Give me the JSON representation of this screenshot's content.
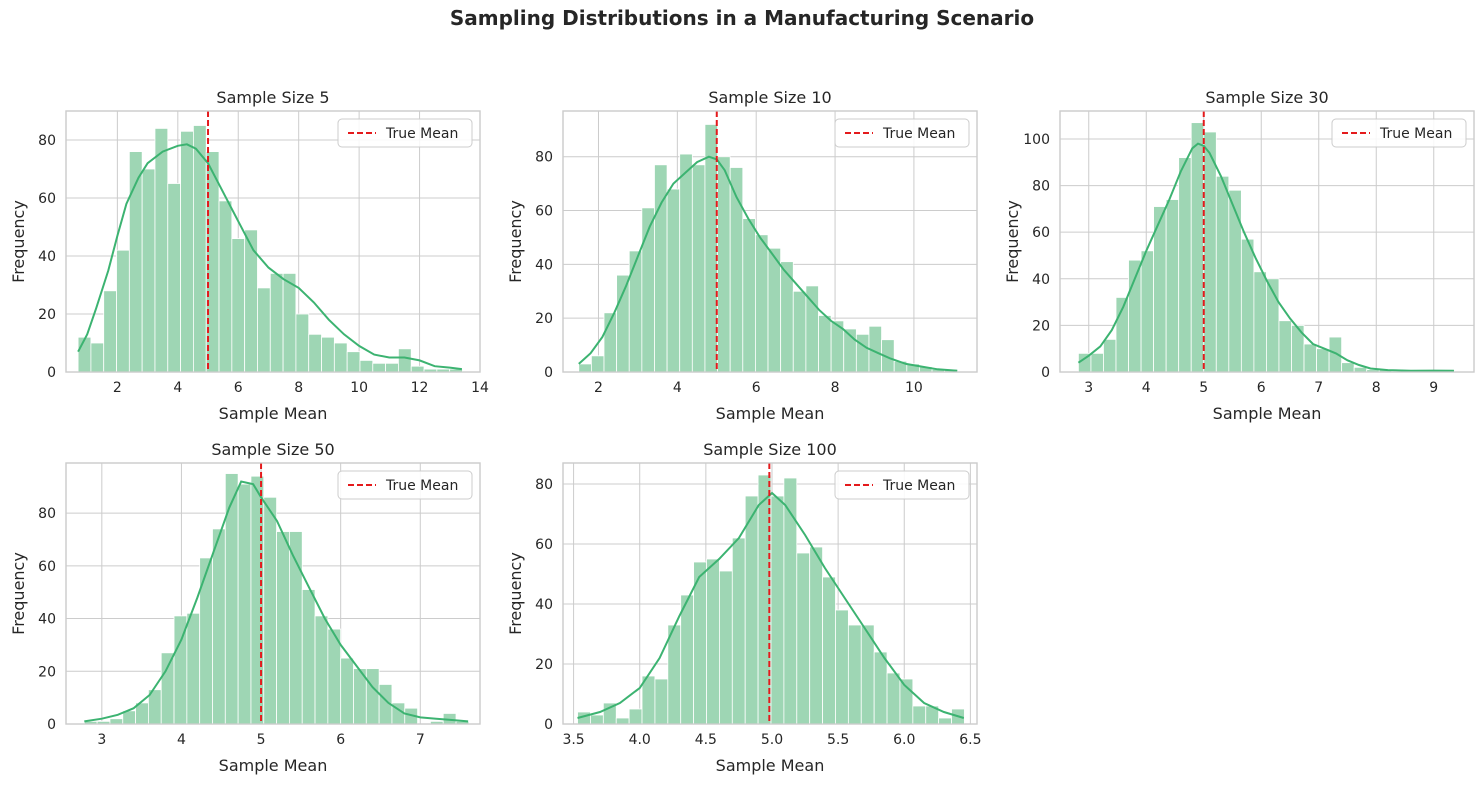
{
  "figure": {
    "title": "Sampling Distributions in a Manufacturing Scenario"
  },
  "colors": {
    "bar": "#9ed6b4",
    "kde": "#3cb371",
    "mean_line": "#e41a1c",
    "grid": "#cccccc"
  },
  "chart_data": [
    {
      "type": "bar",
      "title": "Sample Size 5",
      "xlabel": "Sample Mean",
      "ylabel": "Frequency",
      "xlim": [
        0.3,
        14.0
      ],
      "ylim": [
        0,
        90
      ],
      "xticks": [
        2,
        4,
        6,
        8,
        10,
        12,
        14
      ],
      "yticks": [
        0,
        20,
        40,
        60,
        80
      ],
      "bin_start": 0.7,
      "bin_width": 0.424,
      "values": [
        12,
        10,
        28,
        42,
        76,
        70,
        84,
        65,
        83,
        85,
        76,
        59,
        46,
        49,
        29,
        34,
        34,
        20,
        13,
        12,
        10,
        7,
        4,
        3,
        3,
        8,
        2,
        1,
        1,
        1
      ],
      "kde": [
        [
          0.7,
          7
        ],
        [
          1.0,
          13
        ],
        [
          1.3,
          22
        ],
        [
          1.7,
          35
        ],
        [
          2.0,
          47
        ],
        [
          2.3,
          58
        ],
        [
          2.7,
          67
        ],
        [
          3.0,
          72
        ],
        [
          3.5,
          76
        ],
        [
          4.0,
          78
        ],
        [
          4.3,
          78.5
        ],
        [
          4.6,
          77
        ],
        [
          5.0,
          72
        ],
        [
          5.5,
          62
        ],
        [
          6.0,
          52
        ],
        [
          6.5,
          42
        ],
        [
          7.0,
          36
        ],
        [
          7.5,
          32
        ],
        [
          8.0,
          29
        ],
        [
          8.5,
          24
        ],
        [
          9.0,
          18
        ],
        [
          9.5,
          13
        ],
        [
          10.0,
          9
        ],
        [
          10.5,
          6
        ],
        [
          11.0,
          5
        ],
        [
          11.5,
          5
        ],
        [
          12.0,
          4
        ],
        [
          12.5,
          2
        ],
        [
          13.0,
          1.5
        ],
        [
          13.4,
          1
        ]
      ],
      "true_mean": 5.0,
      "legend": {
        "entries": [
          "True Mean"
        ],
        "placement": "upper-right"
      }
    },
    {
      "type": "bar",
      "title": "Sample Size 10",
      "xlabel": "Sample Mean",
      "ylabel": "Frequency",
      "xlim": [
        1.1,
        11.6
      ],
      "ylim": [
        0,
        97
      ],
      "xticks": [
        2,
        4,
        6,
        8,
        10
      ],
      "yticks": [
        0,
        20,
        40,
        60,
        80
      ],
      "bin_start": 1.5,
      "bin_width": 0.32,
      "values": [
        3,
        6,
        22,
        36,
        45,
        61,
        77,
        68,
        81,
        77,
        92,
        80,
        76,
        57,
        51,
        46,
        41,
        30,
        32,
        21,
        19,
        16,
        14,
        17,
        12,
        4,
        3,
        2,
        1,
        1
      ],
      "kde": [
        [
          1.5,
          3
        ],
        [
          1.8,
          7
        ],
        [
          2.1,
          13
        ],
        [
          2.4,
          22
        ],
        [
          2.7,
          32
        ],
        [
          3.0,
          43
        ],
        [
          3.3,
          54
        ],
        [
          3.6,
          63
        ],
        [
          3.9,
          70
        ],
        [
          4.2,
          74
        ],
        [
          4.5,
          78
        ],
        [
          4.8,
          80
        ],
        [
          5.0,
          79
        ],
        [
          5.2,
          75
        ],
        [
          5.5,
          65
        ],
        [
          5.8,
          57
        ],
        [
          6.1,
          50
        ],
        [
          6.4,
          44
        ],
        [
          6.7,
          38
        ],
        [
          7.0,
          33
        ],
        [
          7.3,
          28
        ],
        [
          7.6,
          23
        ],
        [
          7.9,
          19
        ],
        [
          8.2,
          16
        ],
        [
          8.5,
          12
        ],
        [
          8.8,
          9
        ],
        [
          9.1,
          7
        ],
        [
          9.4,
          5
        ],
        [
          9.8,
          3
        ],
        [
          10.2,
          2
        ],
        [
          10.6,
          1
        ],
        [
          11.1,
          0.5
        ]
      ],
      "true_mean": 5.0,
      "legend": {
        "entries": [
          "True Mean"
        ],
        "placement": "upper-right"
      }
    },
    {
      "type": "bar",
      "title": "Sample Size 30",
      "xlabel": "Sample Mean",
      "ylabel": "Frequency",
      "xlim": [
        2.5,
        9.7
      ],
      "ylim": [
        0,
        112
      ],
      "xticks": [
        3,
        4,
        5,
        6,
        7,
        8,
        9
      ],
      "yticks": [
        0,
        20,
        40,
        60,
        80,
        100
      ],
      "bin_start": 2.82,
      "bin_width": 0.218,
      "values": [
        8,
        8,
        14,
        32,
        48,
        52,
        71,
        74,
        92,
        107,
        103,
        84,
        78,
        57,
        43,
        40,
        22,
        20,
        12,
        10,
        15,
        4,
        2,
        1,
        1,
        0,
        0,
        0,
        0,
        1
      ],
      "kde": [
        [
          2.82,
          4
        ],
        [
          3.0,
          7
        ],
        [
          3.2,
          11
        ],
        [
          3.4,
          18
        ],
        [
          3.6,
          28
        ],
        [
          3.8,
          40
        ],
        [
          4.0,
          52
        ],
        [
          4.2,
          63
        ],
        [
          4.4,
          74
        ],
        [
          4.6,
          86
        ],
        [
          4.8,
          96
        ],
        [
          4.9,
          98
        ],
        [
          5.0,
          97
        ],
        [
          5.1,
          94
        ],
        [
          5.3,
          84
        ],
        [
          5.5,
          72
        ],
        [
          5.7,
          60
        ],
        [
          5.9,
          49
        ],
        [
          6.1,
          39
        ],
        [
          6.3,
          30
        ],
        [
          6.5,
          23
        ],
        [
          6.7,
          17
        ],
        [
          6.9,
          12
        ],
        [
          7.1,
          10
        ],
        [
          7.3,
          8
        ],
        [
          7.5,
          5
        ],
        [
          7.7,
          3
        ],
        [
          7.9,
          1.5
        ],
        [
          8.2,
          0.8
        ],
        [
          8.6,
          0.5
        ],
        [
          9.0,
          0.6
        ],
        [
          9.35,
          0.5
        ]
      ],
      "true_mean": 5.0,
      "legend": {
        "entries": [
          "True Mean"
        ],
        "placement": "upper-right"
      }
    },
    {
      "type": "bar",
      "title": "Sample Size 50",
      "xlabel": "Sample Mean",
      "ylabel": "Frequency",
      "xlim": [
        2.55,
        7.75
      ],
      "ylim": [
        0,
        99
      ],
      "xticks": [
        3,
        4,
        5,
        6,
        7
      ],
      "yticks": [
        0,
        20,
        40,
        60,
        80
      ],
      "bin_start": 2.78,
      "bin_width": 0.161,
      "values": [
        1,
        1,
        2,
        5,
        8,
        13,
        27,
        41,
        42,
        63,
        74,
        95,
        91,
        94,
        86,
        73,
        73,
        51,
        41,
        36,
        25,
        21,
        21,
        15,
        8,
        6,
        0,
        1,
        4,
        1
      ],
      "kde": [
        [
          2.78,
          1
        ],
        [
          3.0,
          2
        ],
        [
          3.2,
          3.5
        ],
        [
          3.4,
          6
        ],
        [
          3.6,
          11
        ],
        [
          3.8,
          20
        ],
        [
          4.0,
          32
        ],
        [
          4.2,
          48
        ],
        [
          4.4,
          65
        ],
        [
          4.6,
          82
        ],
        [
          4.75,
          92
        ],
        [
          4.9,
          91
        ],
        [
          5.0,
          86
        ],
        [
          5.2,
          77
        ],
        [
          5.4,
          64
        ],
        [
          5.6,
          52
        ],
        [
          5.8,
          40
        ],
        [
          6.0,
          30
        ],
        [
          6.2,
          22
        ],
        [
          6.4,
          14
        ],
        [
          6.6,
          8
        ],
        [
          6.8,
          4
        ],
        [
          7.0,
          2.5
        ],
        [
          7.2,
          2
        ],
        [
          7.4,
          1.5
        ],
        [
          7.6,
          1
        ]
      ],
      "true_mean": 5.0,
      "legend": {
        "entries": [
          "True Mean"
        ],
        "placement": "upper-right"
      }
    },
    {
      "type": "bar",
      "title": "Sample Size 100",
      "xlabel": "Sample Mean",
      "ylabel": "Frequency",
      "xlim": [
        3.42,
        6.55
      ],
      "ylim": [
        0,
        87
      ],
      "xticks": [
        3.5,
        4.0,
        4.5,
        5.0,
        5.5,
        6.0,
        6.5
      ],
      "tick_labels": [
        "3.5",
        "4.0",
        "4.5",
        "5.0",
        "5.5",
        "6.0",
        "6.5"
      ],
      "yticks": [
        0,
        20,
        40,
        60,
        80
      ],
      "bin_start": 3.53,
      "bin_width": 0.0975,
      "values": [
        4,
        3,
        7,
        2,
        5,
        16,
        15,
        33,
        43,
        54,
        55,
        51,
        62,
        76,
        83,
        76,
        82,
        57,
        59,
        49,
        38,
        33,
        33,
        24,
        17,
        15,
        6,
        6,
        2,
        5
      ],
      "kde": [
        [
          3.53,
          2
        ],
        [
          3.7,
          4
        ],
        [
          3.85,
          7
        ],
        [
          4.0,
          12
        ],
        [
          4.15,
          22
        ],
        [
          4.3,
          36
        ],
        [
          4.45,
          49
        ],
        [
          4.6,
          55
        ],
        [
          4.75,
          62
        ],
        [
          4.9,
          73
        ],
        [
          5.0,
          77
        ],
        [
          5.1,
          73
        ],
        [
          5.25,
          63
        ],
        [
          5.4,
          52
        ],
        [
          5.55,
          42
        ],
        [
          5.7,
          32
        ],
        [
          5.85,
          22
        ],
        [
          6.0,
          13
        ],
        [
          6.15,
          7
        ],
        [
          6.3,
          4
        ],
        [
          6.45,
          2
        ]
      ],
      "true_mean": 4.98,
      "legend": {
        "entries": [
          "True Mean"
        ],
        "placement": "upper-right"
      }
    }
  ]
}
